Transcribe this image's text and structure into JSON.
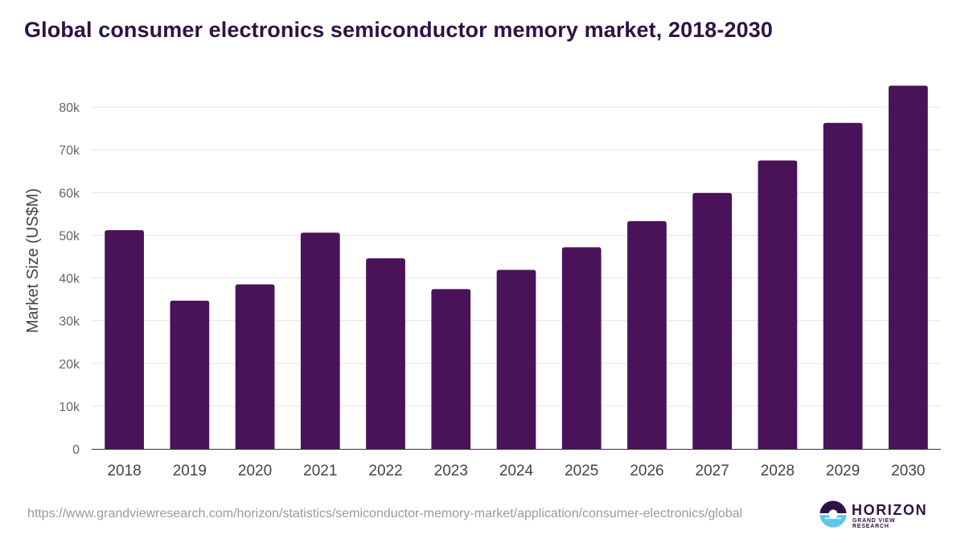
{
  "title": "Global consumer electronics semiconductor memory market, 2018-2030",
  "source_url": "https://www.grandviewresearch.com/horizon/statistics/semiconductor-memory-market/application/consumer-electronics/global",
  "logo": {
    "name": "HORIZON",
    "subtitle": "GRAND VIEW RESEARCH"
  },
  "colors": {
    "bar": "#4a1259",
    "title": "#2e1245",
    "grid": "#e6e6e6",
    "axis": "#333333"
  },
  "chart_data": {
    "type": "bar",
    "title": "Global consumer electronics semiconductor memory market, 2018-2030",
    "xlabel": "",
    "ylabel": "Market Size (US$M)",
    "categories": [
      "2018",
      "2019",
      "2020",
      "2021",
      "2022",
      "2023",
      "2024",
      "2025",
      "2026",
      "2027",
      "2028",
      "2029",
      "2030"
    ],
    "values": [
      51200,
      34700,
      38500,
      50600,
      44600,
      37400,
      41900,
      47200,
      53300,
      59900,
      67500,
      76300,
      85000
    ],
    "ylim": [
      0,
      90000
    ],
    "yticks": [
      0,
      10000,
      20000,
      30000,
      40000,
      50000,
      60000,
      70000,
      80000
    ],
    "ytick_labels": [
      "0",
      "10k",
      "20k",
      "30k",
      "40k",
      "50k",
      "60k",
      "70k",
      "80k"
    ],
    "grid": true,
    "legend": "none"
  }
}
